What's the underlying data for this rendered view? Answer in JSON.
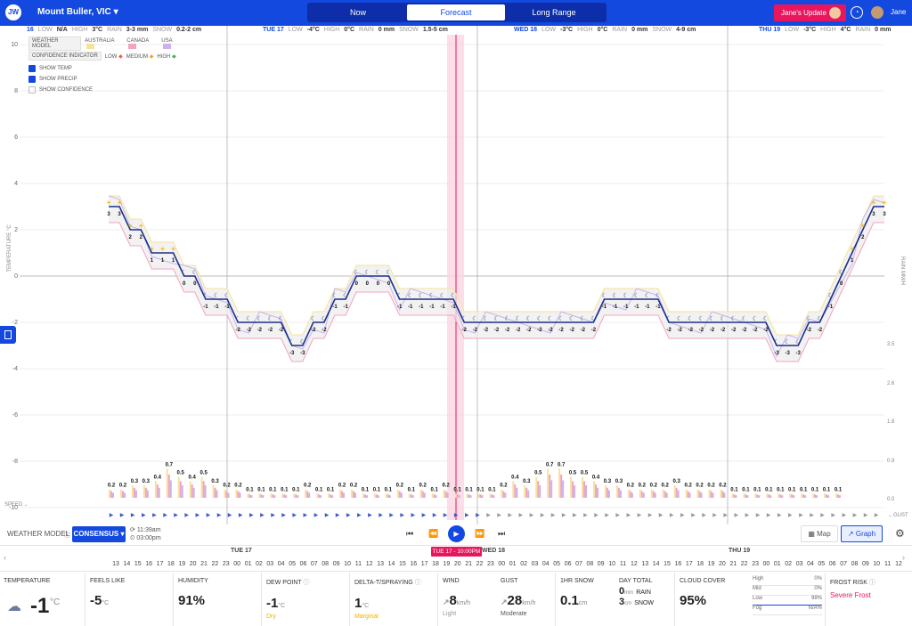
{
  "app": {
    "logo": "JW",
    "location": "Mount Buller, VIC",
    "user": "Jane",
    "update_btn": "Jane's Update"
  },
  "tabs": [
    {
      "label": "Now"
    },
    {
      "label": "Forecast"
    },
    {
      "label": "Long Range"
    }
  ],
  "days": [
    {
      "label": "16",
      "low": "N/A",
      "high": "3°C",
      "rain": "3-3 mm",
      "snow": "0.2-2 cm"
    },
    {
      "label": "TUE 17",
      "low": "-4°C",
      "high": "0°C",
      "rain": "0 mm",
      "snow": "1.5-5 cm"
    },
    {
      "label": "WED 18",
      "low": "-3°C",
      "high": "0°C",
      "rain": "0 mm",
      "snow": "4-9 cm"
    },
    {
      "label": "THU 19",
      "low": "-3°C",
      "high": "4°C",
      "rain": "0 mm"
    }
  ],
  "day_keys": {
    "low": "LOW",
    "high": "HIGH",
    "rain": "RAIN",
    "snow": "SNOW"
  },
  "legend": {
    "weather_model": "WEATHER MODEL",
    "models": [
      {
        "name": "AUSTRALIA",
        "color": "#f6e39a"
      },
      {
        "name": "CANADA",
        "color": "#f4a3c0"
      },
      {
        "name": "USA",
        "color": "#c9b2ef"
      }
    ],
    "confidence": "CONFIDENCE INDICATOR",
    "levels": [
      {
        "name": "LOW",
        "color": "#e8604a"
      },
      {
        "name": "MEDIUM",
        "color": "#f0a030"
      },
      {
        "name": "HIGH",
        "color": "#4cae4c"
      }
    ],
    "show_temp": "SHOW TEMP",
    "show_precip": "SHOW PRECIP",
    "show_confidence": "SHOW CONFIDENCE"
  },
  "axes": {
    "temp_label": "TEMPERATURE °C",
    "rain_label": "RAIN MM/H",
    "temp_ticks": [
      "10",
      "8",
      "6",
      "4",
      "2",
      "0",
      "-2",
      "-4",
      "-6",
      "-8",
      "-10"
    ],
    "rain_ticks": [
      "3.5",
      "2.6",
      "1.8",
      "0.9",
      "0.0"
    ],
    "speed_label": "SPEED→",
    "gust_label": "←GUST"
  },
  "chart_data": {
    "type": "line",
    "ylabel": "TEMPERATURE °C",
    "ylim": [
      -10,
      10
    ],
    "time_points": 108,
    "consensus_labels": [
      "3",
      "3",
      "2",
      "2",
      "1",
      "1",
      "1",
      "0",
      "0",
      "-1",
      "-1",
      "-1",
      "-2",
      "-2",
      "-2",
      "-2",
      "-2",
      "-3",
      "-3",
      "-2",
      "-2",
      "-1",
      "-1",
      "0",
      "0",
      "0",
      "0",
      "-1",
      "-1",
      "-1",
      "-1",
      "-1",
      "-1",
      "-2",
      "-2",
      "-2",
      "-2",
      "-2",
      "-2",
      "-2",
      "-2",
      "-2",
      "-2",
      "-2",
      "-2",
      "-2",
      "-1",
      "-1",
      "-1",
      "-1",
      "-1",
      "-1",
      "-2",
      "-2",
      "-2",
      "-2",
      "-2",
      "-2",
      "-2",
      "-2",
      "-2",
      "-2",
      "-3",
      "-3",
      "-3",
      "-2",
      "-2",
      "-1",
      "0",
      "1",
      "2",
      "3",
      "3"
    ],
    "precip_labels": [
      "0.2",
      "0.2",
      "0.3",
      "0.3",
      "0.4",
      "0.7",
      "0.5",
      "0.4",
      "0.5",
      "0.3",
      "0.2",
      "0.2",
      "0.1",
      "0.1",
      "0.1",
      "0.1",
      "0.1",
      "0.2",
      "0.1",
      "0.1",
      "0.2",
      "0.2",
      "0.1",
      "0.1",
      "0.1",
      "0.2",
      "0.1",
      "0.2",
      "0.1",
      "0.2",
      "0.1",
      "0.1",
      "0.1",
      "0.1",
      "0.2",
      "0.4",
      "0.3",
      "0.5",
      "0.7",
      "0.7",
      "0.5",
      "0.5",
      "0.4",
      "0.3",
      "0.3",
      "0.2",
      "0.2",
      "0.2",
      "0.2",
      "0.3",
      "0.2",
      "0.2",
      "0.2",
      "0.2",
      "0.1",
      "0.1",
      "0.1",
      "0.1",
      "0.1",
      "0.1",
      "0.1",
      "0.1",
      "0.1",
      "0.1"
    ]
  },
  "controls": {
    "weather_model": "WEATHER MODEL",
    "model_value": "CONSENSUS",
    "updated_1": "11:39am",
    "updated_2": "03:00pm",
    "map": "Map",
    "graph": "Graph"
  },
  "timeline": {
    "days": [
      "TUE 17",
      "WED 18",
      "THU 19"
    ],
    "current": "TUE 17 - 10:00PM",
    "hours": [
      "13",
      "14",
      "15",
      "16",
      "17",
      "18",
      "19",
      "20",
      "21",
      "22",
      "23",
      "00",
      "01",
      "02",
      "03",
      "04",
      "05",
      "06",
      "07",
      "08",
      "09",
      "10",
      "11",
      "12",
      "13",
      "14",
      "15",
      "16",
      "17",
      "18",
      "19",
      "20",
      "21",
      "22",
      "23",
      "00",
      "01",
      "02",
      "03",
      "04",
      "05",
      "06",
      "07",
      "08",
      "09",
      "10",
      "11",
      "12",
      "13",
      "14",
      "15",
      "16",
      "17",
      "18",
      "19",
      "20",
      "21",
      "22",
      "23",
      "00",
      "01",
      "02",
      "03",
      "04",
      "05",
      "06",
      "07",
      "08",
      "09",
      "10",
      "11",
      "12"
    ]
  },
  "stats": {
    "temperature": {
      "label": "TEMPERATURE",
      "value": "-1",
      "unit": "°C"
    },
    "feels_like": {
      "label": "FEELS LIKE",
      "value": "-5",
      "unit": "°C"
    },
    "humidity": {
      "label": "HUMIDITY",
      "value": "91%"
    },
    "dew_point": {
      "label": "DEW POINT",
      "value": "-1",
      "unit": "°C",
      "sub": "Dry"
    },
    "delta_t": {
      "label": "DELTA-T/SPRAYING",
      "value": "1",
      "unit": "°C",
      "sub": "Marginal"
    },
    "wind": {
      "label": "WIND",
      "value": "8",
      "unit": "km/h",
      "sub": "Light"
    },
    "gust": {
      "label": "GUST",
      "value": "28",
      "unit": "km/h",
      "sub": "Moderate"
    },
    "snow_1hr": {
      "label": "1HR SNOW",
      "value": "0.1",
      "unit": "cm"
    },
    "day_total": {
      "label": "DAY TOTAL",
      "rain_value": "0",
      "rain_unit": "mm",
      "rain_label": "RAIN",
      "snow_value": "3",
      "snow_unit": "cm",
      "snow_label": "SNOW"
    },
    "cloud_cover": {
      "label": "CLOUD COVER",
      "value": "95%"
    },
    "cloud_levels": [
      {
        "name": "High",
        "value": "0%"
      },
      {
        "name": "Mid",
        "value": "0%"
      },
      {
        "name": "Low",
        "value": "98%"
      },
      {
        "name": "Fog",
        "value": "N/A%"
      }
    ],
    "frost": {
      "label": "FROST RISK",
      "value": "Severe Frost"
    }
  },
  "colors": {
    "brand": "#1449e0",
    "accent": "#e8175d",
    "line_temp_warm": "#e8175d",
    "line_temp_cold": "#1a2f8a"
  }
}
